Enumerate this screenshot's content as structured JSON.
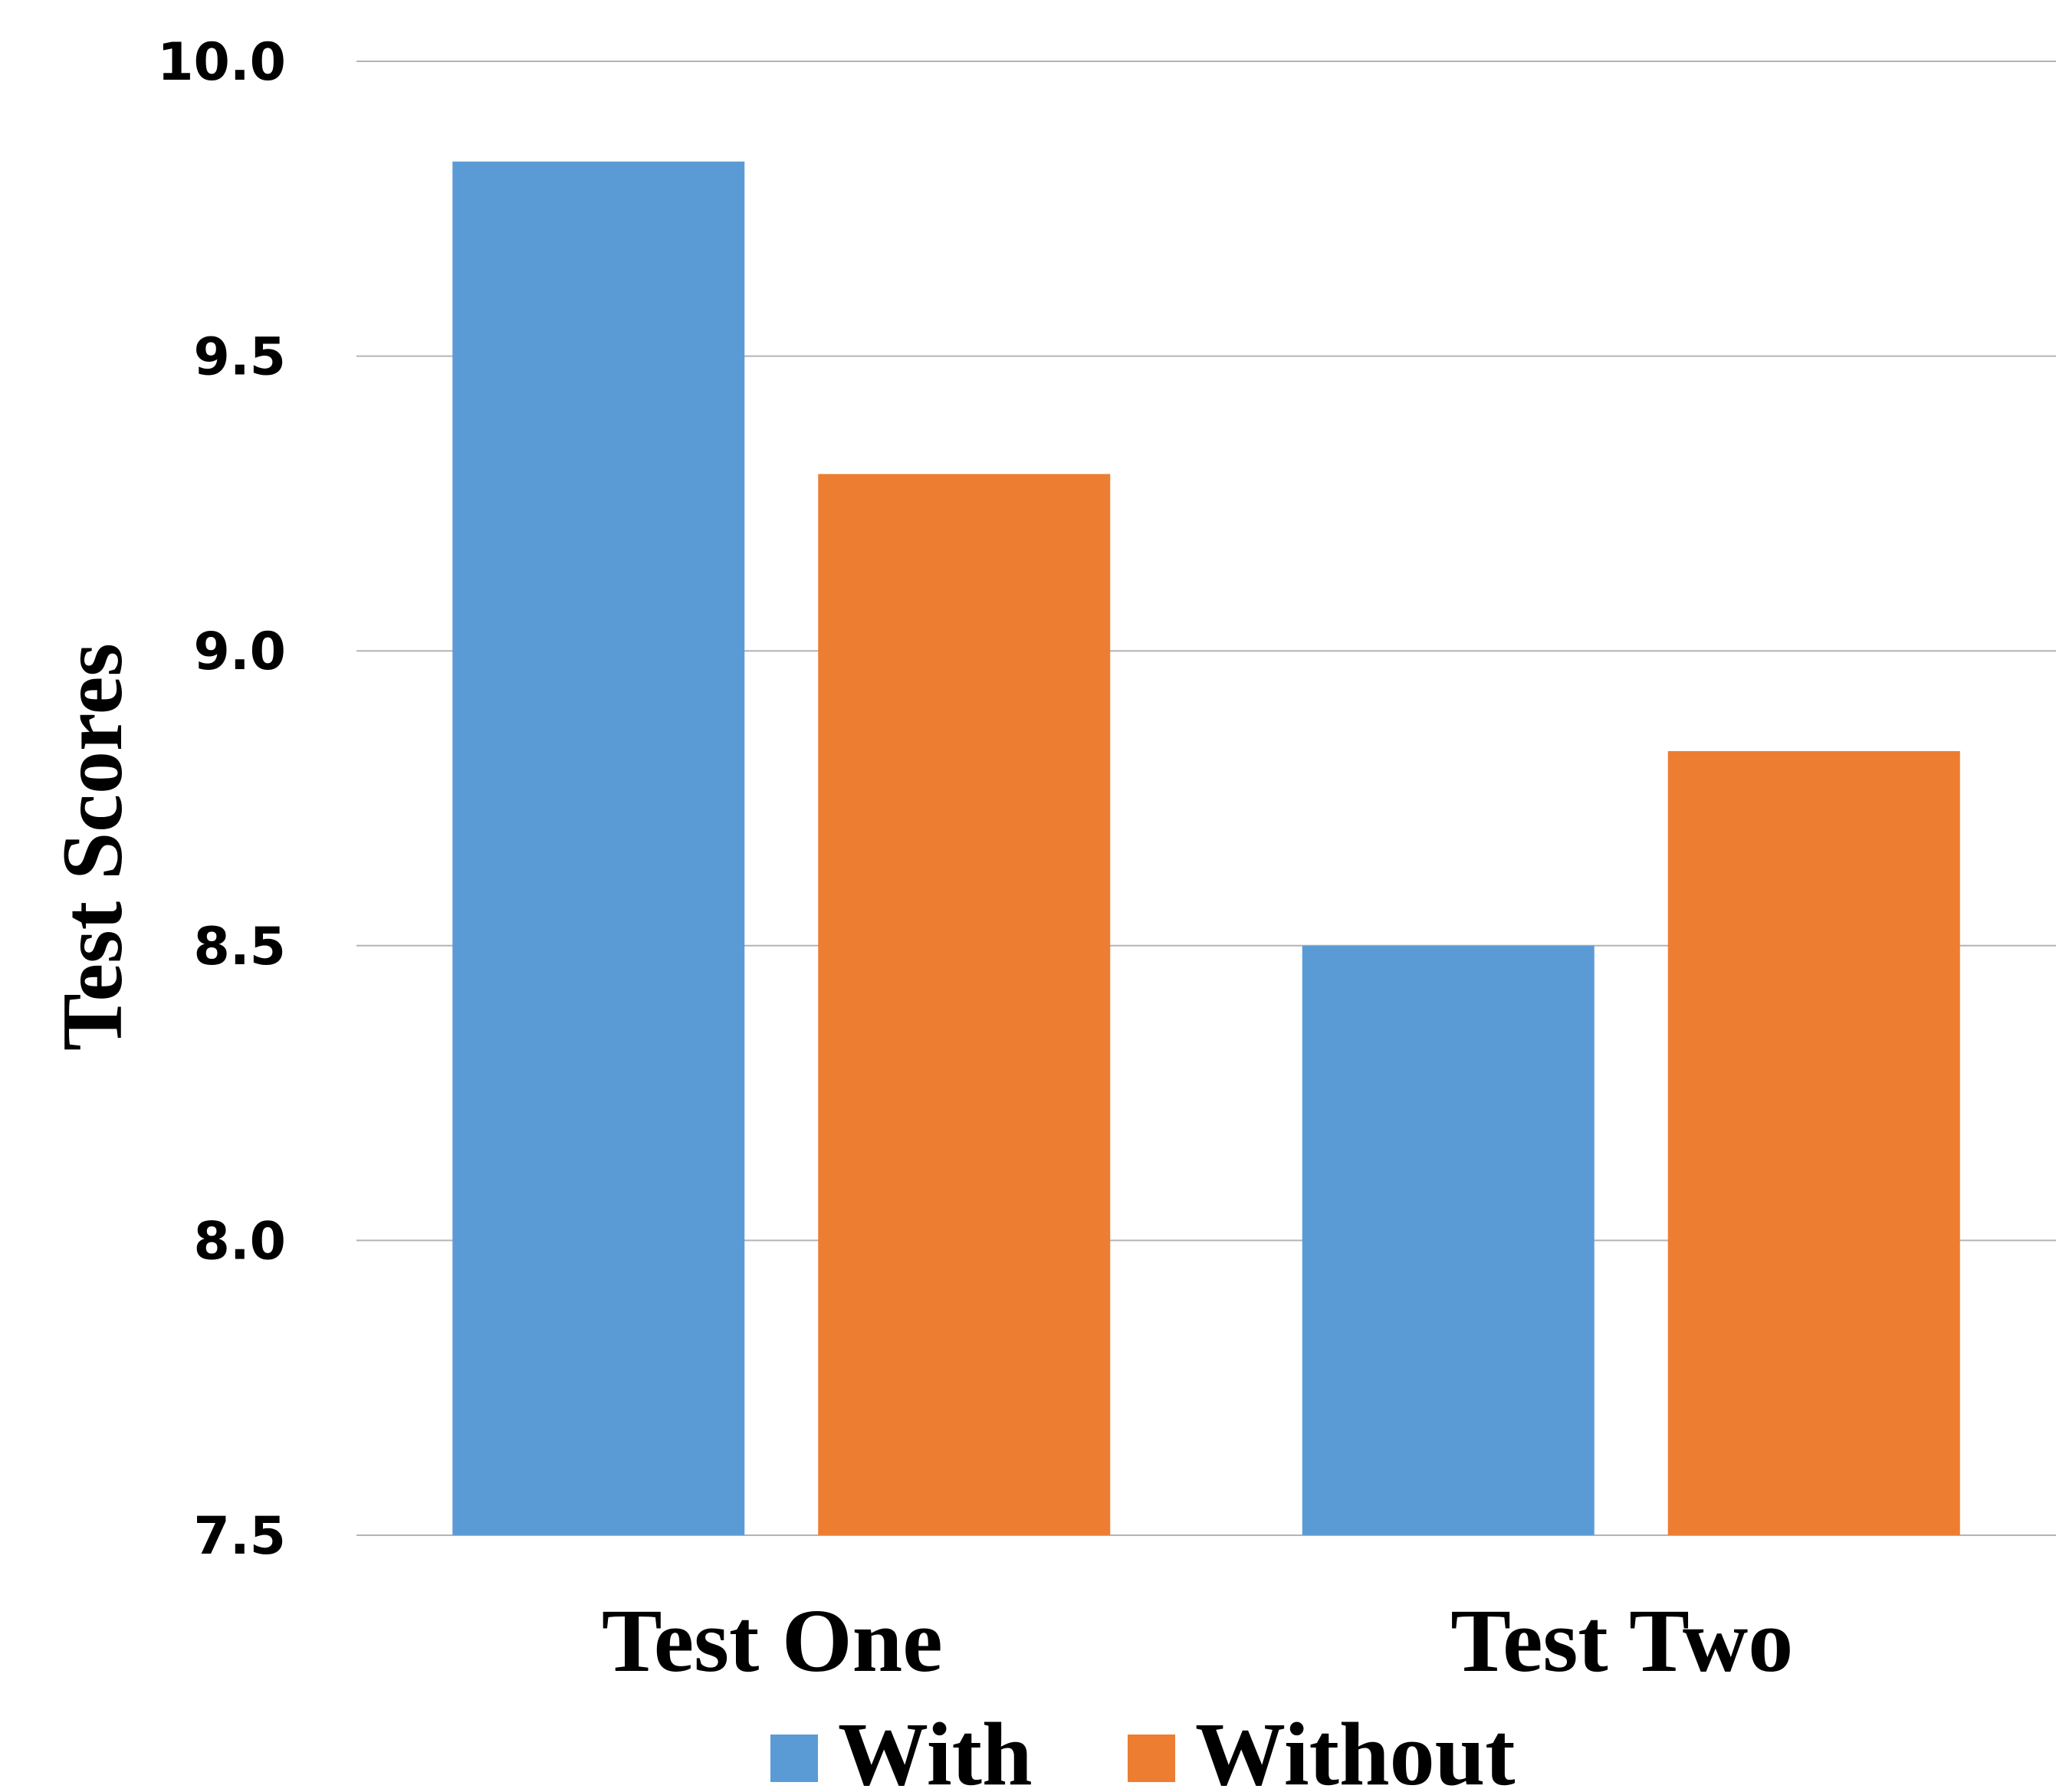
{
  "chart_data": {
    "type": "bar",
    "categories": [
      "Test One",
      "Test Two"
    ],
    "series": [
      {
        "name": "With",
        "color": "#5B9BD5",
        "values": [
          9.83,
          8.5
        ]
      },
      {
        "name": "Without",
        "color": "#ED7D31",
        "values": [
          9.3,
          8.83
        ]
      }
    ],
    "title": "",
    "xlabel": "",
    "ylabel": "Test Scores",
    "ylim": [
      7.5,
      10.0
    ],
    "yticks": [
      "7.5",
      "8.0",
      "8.5",
      "9.0",
      "9.5",
      "10.0"
    ],
    "grid": true,
    "legend_position": "bottom"
  }
}
